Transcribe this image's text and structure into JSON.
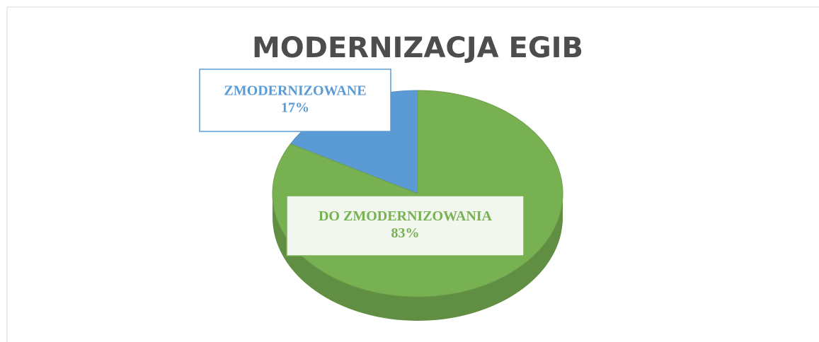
{
  "chart_data": {
    "type": "pie",
    "title": "MODERNIZACJA EGIB",
    "categories": [
      "ZMODERNIZOWANE",
      "DO ZMODERNIZOWANIA"
    ],
    "values": [
      17,
      83
    ],
    "value_labels": [
      "17%",
      "83%"
    ],
    "colors": [
      "#5b9bd5",
      "#78b152"
    ]
  }
}
